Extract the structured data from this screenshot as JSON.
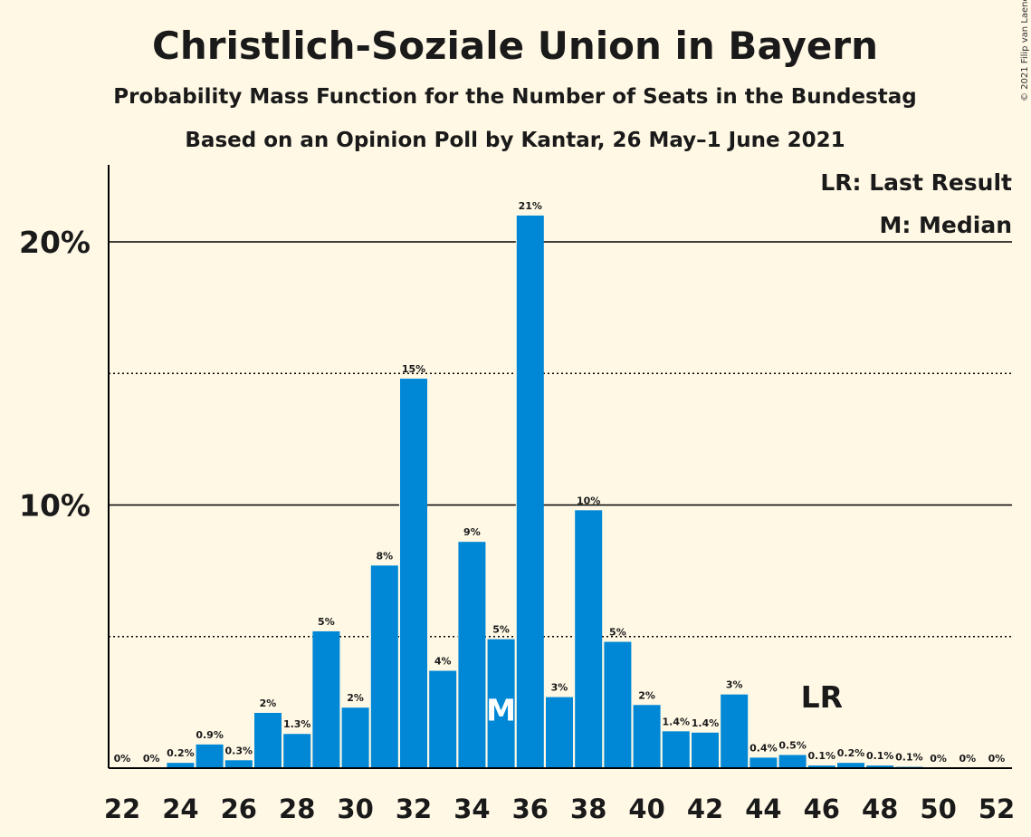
{
  "header": {
    "title": "Christlich-Soziale Union in Bayern",
    "subtitle1": "Probability Mass Function for the Number of Seats in the Bundestag",
    "subtitle2": "Based on an Opinion Poll by Kantar, 26 May–1 June 2021",
    "copyright": "© 2021 Filip van Laenen"
  },
  "legend": {
    "last_result": "LR: Last Result",
    "median": "M: Median",
    "placement": "top-right"
  },
  "colors": {
    "bar": "#0088D6",
    "background": "#FFF8E5",
    "text": "#1a1a1a"
  },
  "chart_data": {
    "type": "bar",
    "title": "Christlich-Soziale Union in Bayern",
    "x": [
      22,
      23,
      24,
      25,
      26,
      27,
      28,
      29,
      30,
      31,
      32,
      33,
      34,
      35,
      36,
      37,
      38,
      39,
      40,
      41,
      42,
      43,
      44,
      45,
      46,
      47,
      48,
      49,
      50,
      51,
      52
    ],
    "values": [
      0,
      0,
      0.2,
      0.9,
      0.3,
      2.1,
      1.3,
      5.2,
      2.3,
      7.7,
      14.8,
      3.7,
      8.6,
      4.9,
      21.0,
      2.7,
      9.8,
      4.8,
      2.4,
      1.4,
      1.35,
      2.8,
      0.4,
      0.5,
      0.1,
      0.2,
      0.1,
      0.05,
      0,
      0,
      0
    ],
    "labels": [
      "0%",
      "0%",
      "0.2%",
      "0.9%",
      "0.3%",
      "2%",
      "1.3%",
      "5%",
      "2%",
      "8%",
      "15%",
      "4%",
      "9%",
      "5%",
      "21%",
      "3%",
      "10%",
      "5%",
      "2%",
      "1.4%",
      "1.4%",
      "3%",
      "0.4%",
      "0.5%",
      "0.1%",
      "0.2%",
      "0.1%",
      "0.1%",
      "0%",
      "0%",
      "0%"
    ],
    "xtick_labels": [
      "22",
      "24",
      "26",
      "28",
      "30",
      "32",
      "34",
      "36",
      "38",
      "40",
      "42",
      "44",
      "46",
      "48",
      "50",
      "52"
    ],
    "ytick_labels": [
      "10%",
      "20%"
    ],
    "ylim": [
      0,
      23
    ],
    "major_gridlines": [
      10,
      20
    ],
    "minor_gridlines": [
      5,
      15
    ],
    "median_seat": 35,
    "median_marker": "M",
    "last_result_seat": 46,
    "last_result_marker": "LR"
  }
}
